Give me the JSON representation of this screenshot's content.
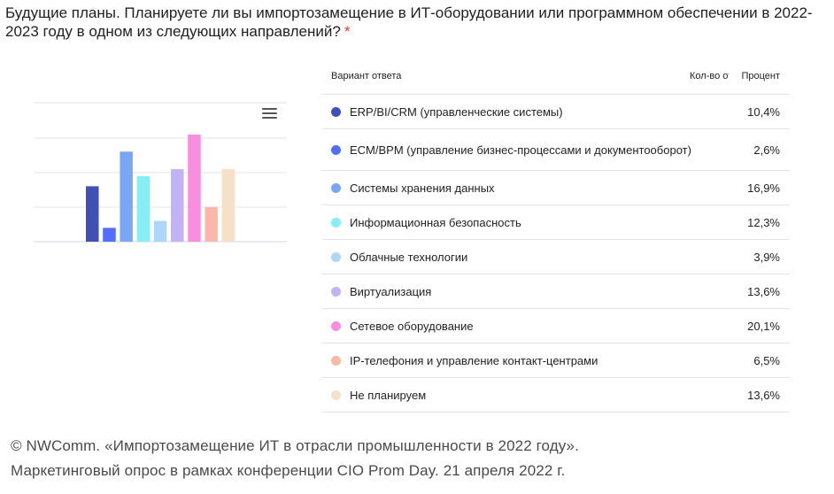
{
  "question": {
    "text": "Будущие планы. Планируете ли вы импортозамещение в ИТ-оборудовании или программном обеспечении в 2022-2023 году в одном из следующих направлений?",
    "required_mark": "*"
  },
  "table": {
    "headers": {
      "answer": "Вариант ответа",
      "count": "Кол-во ответов",
      "percent": "Процент"
    }
  },
  "chart_data": {
    "type": "bar",
    "categories": [
      "ERP/BI/CRM (управленческие системы)",
      "ECM/BPM (управление бизнес-процессами и документооборот)",
      "Системы хранения данных",
      "Информационная безопасность",
      "Облачные технологии",
      "Виртуализация",
      "Сетевое оборудование",
      "IP-телефония и управление контакт-центрами",
      "Не планируем"
    ],
    "values": [
      10.4,
      2.6,
      16.9,
      12.3,
      3.9,
      13.6,
      20.1,
      6.5,
      13.6
    ],
    "value_labels": [
      "10,4%",
      "2,6%",
      "16,9%",
      "12,3%",
      "3,9%",
      "13,6%",
      "20,1%",
      "6,5%",
      "13,6%"
    ],
    "colors": [
      "#3f51b5",
      "#536dfe",
      "#7aa7f5",
      "#86eef5",
      "#aed6f7",
      "#c3b3f6",
      "#f98ee0",
      "#fbb8a8",
      "#f5e0c8"
    ],
    "ylim": [
      0,
      20.1
    ],
    "grid": true,
    "title": "",
    "xlabel": "",
    "ylabel": ""
  },
  "icons": {
    "menu": "hamburger-menu-icon"
  },
  "footer": {
    "line1": "© NWComm. «Импортозамещение  ИТ в отрасли промышленности  в 2022 году».",
    "line2": "Маркетинговый  опрос в рамках конференции  CIO Prom Day. 21 апреля 2022 г."
  }
}
